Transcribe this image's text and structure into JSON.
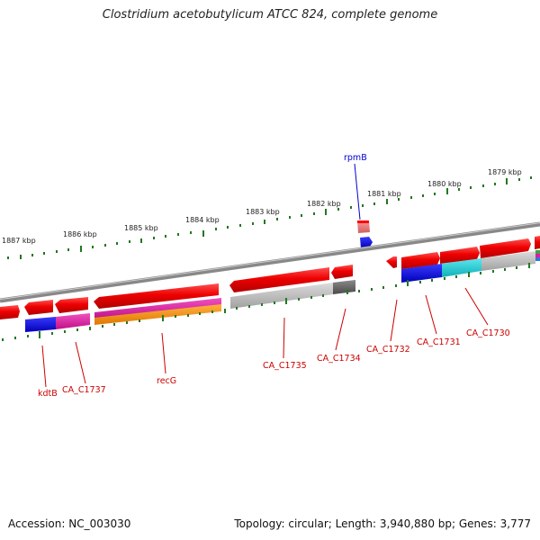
{
  "title": "Clostridium acetobutylicum ATCC 824, complete genome",
  "accession": "Accession: NC_003030",
  "summary": "Topology: circular; Length: 3,940,880 bp; Genes: 3,777",
  "scale_labels": [
    "1887 kbp",
    "1886 kbp",
    "1885 kbp",
    "1884 kbp",
    "1883 kbp",
    "1882 kbp",
    "1881 kbp",
    "1880 kbp",
    "1879 kbp"
  ],
  "gene_labels": {
    "rpmB": "rpmB",
    "kdtB": "kdtB",
    "CA_C1737": "CA_C1737",
    "recG": "recG",
    "CA_C1735": "CA_C1735",
    "CA_C1734": "CA_C1734",
    "CA_C1732": "CA_C1732",
    "CA_C1731": "CA_C1731",
    "CA_C1730": "CA_C1730"
  },
  "colors": {
    "cds": "#ee0000",
    "blue": "#0000dd",
    "magenta": "#e01ca0",
    "orange": "#f08c00",
    "grey": "#b8b8b8",
    "darkgrey": "#666666",
    "cyan": "#16c8d0",
    "backbone": "#888888",
    "ticks": "#227722",
    "label_red": "#cc0000",
    "label_blue": "#0000cc"
  }
}
